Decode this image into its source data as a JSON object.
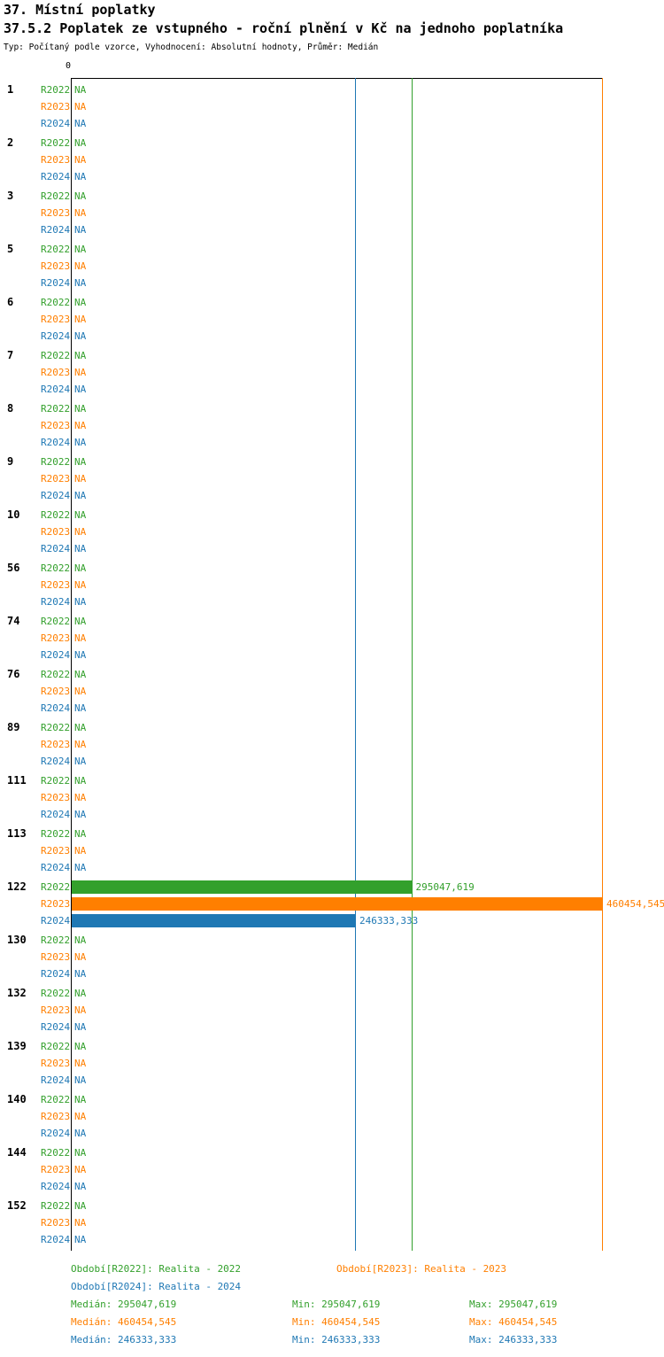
{
  "header": {
    "title": "37. Místní poplatky",
    "subtitle": "37.5.2 Poplatek ze vstupného - roční plnění v Kč na jednoho poplatníka",
    "meta": "Typ: Počítaný podle vzorce, Vyhodnocení: Absolutní hodnoty, Průměr: Medián"
  },
  "chart_data": {
    "type": "bar",
    "orientation": "horizontal",
    "value_axis": {
      "zero_label": "0",
      "min": 0,
      "max": 460454.545
    },
    "na_label": "NA",
    "categories": [
      "1",
      "2",
      "3",
      "5",
      "6",
      "7",
      "8",
      "9",
      "10",
      "56",
      "74",
      "76",
      "89",
      "111",
      "113",
      "122",
      "130",
      "132",
      "139",
      "140",
      "144",
      "152"
    ],
    "series": [
      {
        "name": "R2022",
        "legend": "Období[R2022]: Realita - 2022",
        "color": "#33A02C",
        "median": 295047.619
      },
      {
        "name": "R2023",
        "legend": "Období[R2023]: Realita - 2023",
        "color": "#FF7F00",
        "median": 460454.545
      },
      {
        "name": "R2024",
        "legend": "Období[R2024]: Realita - 2024",
        "color": "#1F78B4",
        "median": 246333.333
      }
    ],
    "values": {
      "122": [
        295047.619,
        460454.545,
        246333.333
      ]
    },
    "value_labels": {
      "122": [
        "295047,619",
        "460454,545",
        "246333,333"
      ]
    },
    "stats": [
      {
        "median": "Medián: 295047,619",
        "min": "Min: 295047,619",
        "max": "Max: 295047,619"
      },
      {
        "median": "Medián: 460454,545",
        "min": "Min: 460454,545",
        "max": "Max: 460454,545"
      },
      {
        "median": "Medián: 246333,333",
        "min": "Min: 246333,333",
        "max": "Max: 246333,333"
      }
    ]
  }
}
